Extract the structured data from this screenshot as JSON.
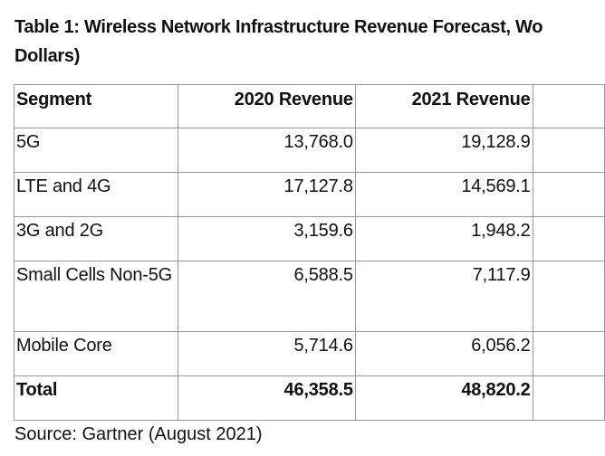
{
  "title": {
    "line1": "Table 1: Wireless Network Infrastructure Revenue Forecast, Wo",
    "line2": "Dollars)"
  },
  "table": {
    "headers": [
      "Segment",
      "2020 Revenue",
      "2021 Revenue",
      ""
    ],
    "rows": [
      {
        "segment": "5G",
        "rev2020": "13,768.0",
        "rev2021": "19,128.9"
      },
      {
        "segment": "LTE and 4G",
        "rev2020": "17,127.8",
        "rev2021": "14,569.1"
      },
      {
        "segment": "3G and 2G",
        "rev2020": "3,159.6",
        "rev2021": "1,948.2"
      },
      {
        "segment": "Small Cells Non-5G",
        "rev2020": "6,588.5",
        "rev2021": "7,117.9"
      },
      {
        "segment": "Mobile Core",
        "rev2020": "5,714.6",
        "rev2021": "6,056.2"
      },
      {
        "segment": "Total",
        "rev2020": "46,358.5",
        "rev2021": "48,820.2"
      }
    ]
  },
  "source": "Source: Gartner (August 2021)"
}
